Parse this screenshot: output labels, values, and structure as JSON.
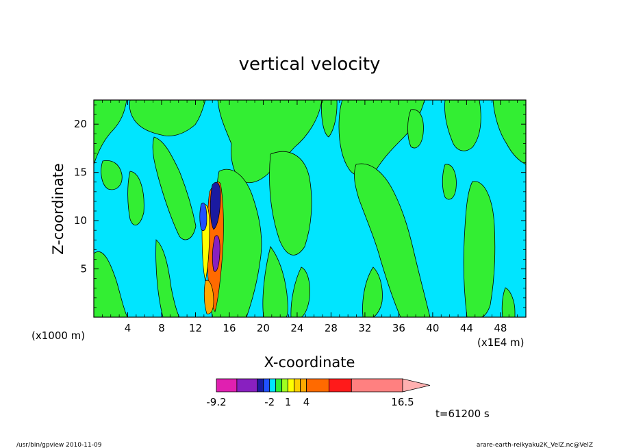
{
  "chart_data": {
    "type": "heatmap",
    "title": "vertical velocity",
    "xlabel": "X-coordinate",
    "ylabel": "Z-coordinate",
    "x_unit_label": "(x1000 m)",
    "x_scale_label": "(x1E4 m)",
    "xlim": [
      0,
      51
    ],
    "ylim": [
      0,
      22.5
    ],
    "x_ticks": [
      "4",
      "8",
      "12",
      "16",
      "20",
      "24",
      "28",
      "32",
      "36",
      "40",
      "44",
      "48"
    ],
    "x_tick_values": [
      4,
      8,
      12,
      16,
      20,
      24,
      28,
      32,
      36,
      40,
      44,
      48
    ],
    "y_ticks": [
      "5",
      "10",
      "15",
      "20"
    ],
    "y_tick_values": [
      5,
      10,
      15,
      20
    ],
    "background_color": "#00e5ff",
    "contour_fill_color": "#33ee33",
    "colorbar": {
      "labels": [
        "-9.2",
        "-2",
        "1",
        "4",
        "16.5"
      ],
      "label_values": [
        -9.2,
        -2,
        1,
        4,
        16.5
      ],
      "levels": [
        -9.2,
        -6.5,
        -4,
        -3,
        -2,
        -1,
        0,
        1,
        2,
        3,
        4,
        6.5,
        9,
        16.5
      ],
      "colors": [
        "#e020b0",
        "#8820c0",
        "#1a1aa0",
        "#2050ff",
        "#00e5ff",
        "#33ee33",
        "#a0ff20",
        "#ffff00",
        "#ffd000",
        "#ffa800",
        "#ff6a00",
        "#ff1a1a",
        "#ff8080",
        "#ffb0b0"
      ]
    },
    "time_label": "t=61200 s"
  },
  "footer": {
    "left": "/usr/bin/gpview   2010-11-09",
    "right": "arare-earth-reikyaku2K_VelZ.nc@VelZ"
  }
}
